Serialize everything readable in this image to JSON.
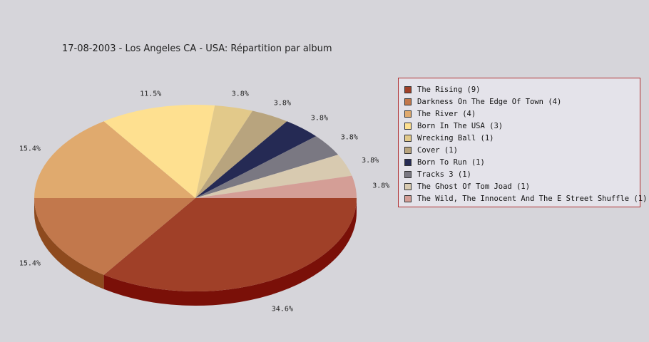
{
  "chart_data": {
    "type": "pie",
    "title": "17-08-2003 - Los Angeles CA - USA:  Répartition par album",
    "legend_position": "right",
    "slices": [
      {
        "label": "The Rising (9)",
        "value": 9,
        "percent_label": "34.6%",
        "color": "#a04028",
        "dark": "#7a1008"
      },
      {
        "label": "Darkness On The Edge Of Town (4)",
        "value": 4,
        "percent_label": "15.4%",
        "color": "#c2784c",
        "dark": "#8e4a1e"
      },
      {
        "label": "The River (4)",
        "value": 4,
        "percent_label": "15.4%",
        "color": "#e0aa6e",
        "dark": "#a87440"
      },
      {
        "label": "Born In The USA (3)",
        "value": 3,
        "percent_label": "11.5%",
        "color": "#fee090",
        "dark": "#c8a860"
      },
      {
        "label": "Wrecking Ball (1)",
        "value": 1,
        "percent_label": "3.8%",
        "color": "#e2c98a",
        "dark": "#a89058"
      },
      {
        "label": "Cover (1)",
        "value": 1,
        "percent_label": "3.8%",
        "color": "#b8a47e",
        "dark": "#8a7652"
      },
      {
        "label": "Born To Run (1)",
        "value": 1,
        "percent_label": "3.8%",
        "color": "#252a54",
        "dark": "#141830"
      },
      {
        "label": "Tracks 3 (1)",
        "value": 1,
        "percent_label": "3.8%",
        "color": "#7a7882",
        "dark": "#55535c"
      },
      {
        "label": "The Ghost Of Tom Joad (1)",
        "value": 1,
        "percent_label": "3.8%",
        "color": "#d8cab0",
        "dark": "#a89a80"
      },
      {
        "label": "The Wild, The Innocent And The E Street Shuffle (1)",
        "value": 1,
        "percent_label": "3.8%",
        "color": "#d49e96",
        "dark": "#a87068"
      }
    ]
  }
}
